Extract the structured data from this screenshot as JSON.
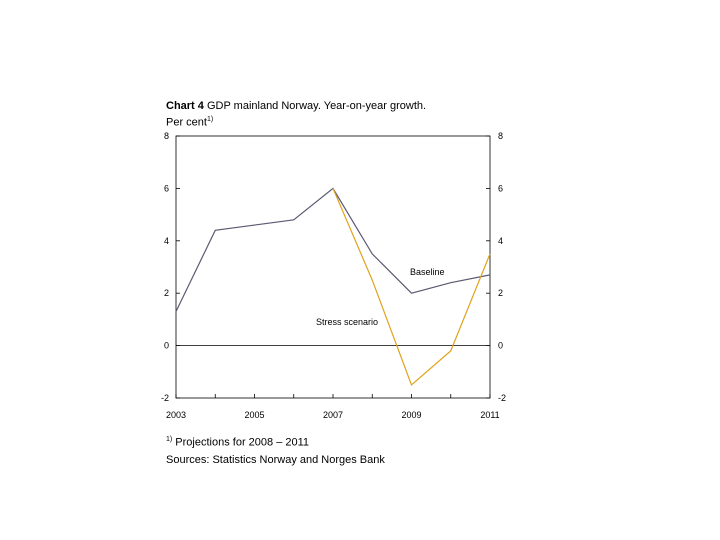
{
  "title": {
    "chart_number": "Chart 4",
    "text": "GDP mainland Norway. Year-on-year growth.",
    "unit_prefix": "Per cent",
    "unit_note_mark": "1)"
  },
  "footnotes": {
    "note_mark": "1)",
    "note_text": "Projections for 2008 – 2011",
    "sources": "Sources: Statistics Norway and Norges Bank"
  },
  "colors": {
    "baseline": "#5a5a72",
    "stress": "#e0a21c",
    "axis": "#000000"
  },
  "chart_data": {
    "type": "line",
    "title": "GDP mainland Norway. Year-on-year growth. Per cent",
    "x": [
      2003,
      2004,
      2005,
      2006,
      2007,
      2008,
      2009,
      2010,
      2011
    ],
    "x_tick_labels": [
      "2003",
      "2005",
      "2007",
      "2009",
      "2011"
    ],
    "y_tick_labels_left": [
      "8",
      "6",
      "4",
      "2",
      "0",
      "-2"
    ],
    "y_tick_labels_right": [
      "8",
      "6",
      "4",
      "2",
      "0",
      "-2"
    ],
    "xlim": [
      2003,
      2011
    ],
    "ylim": [
      -2,
      8
    ],
    "grid": false,
    "zero_line": true,
    "series": [
      {
        "name": "Baseline",
        "x": [
          2003,
          2004,
          2005,
          2006,
          2007,
          2008,
          2009,
          2010,
          2011
        ],
        "values": [
          1.3,
          4.4,
          4.6,
          4.8,
          6.0,
          3.5,
          2.0,
          2.4,
          2.7
        ]
      },
      {
        "name": "Stress scenario",
        "x": [
          2007,
          2008,
          2009,
          2010,
          2011
        ],
        "values": [
          6.0,
          2.5,
          -1.5,
          -0.2,
          3.5
        ]
      }
    ]
  }
}
